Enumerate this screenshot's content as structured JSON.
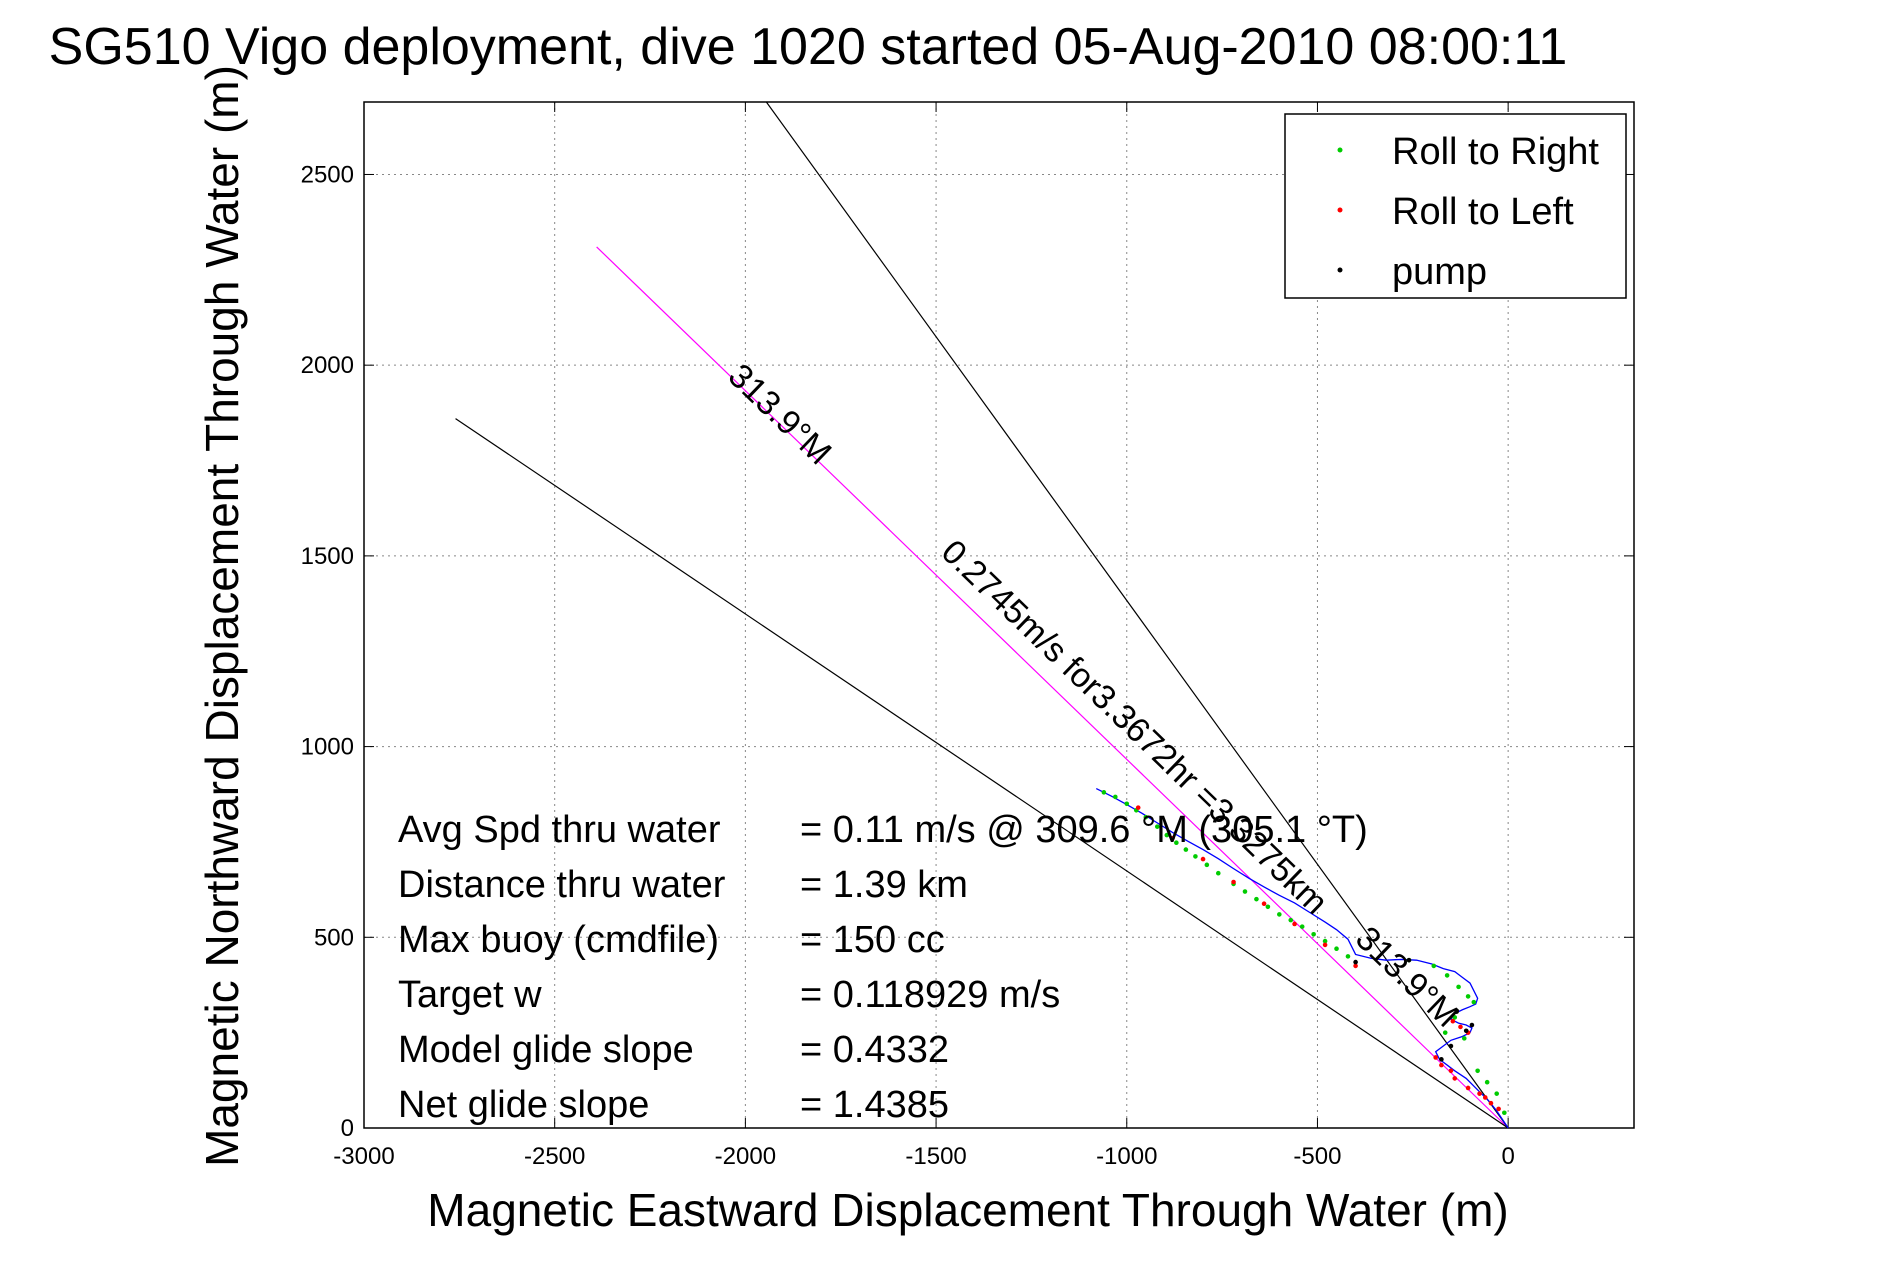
{
  "chart_data": {
    "type": "scatter",
    "title": "SG510 Vigo deployment, dive 1020 started 05-Aug-2010 08:00:11",
    "xlabel": "Magnetic Eastward Displacement Through Water (m)",
    "ylabel": "Magnetic Northward Displacement Through Water (m)",
    "xlim": [
      -3000,
      330
    ],
    "ylim": [
      0,
      2690
    ],
    "xticks": [
      -3000,
      -2500,
      -2000,
      -1500,
      -1000,
      -500,
      0
    ],
    "yticks": [
      0,
      500,
      1000,
      1500,
      2000,
      2500
    ],
    "grid": true,
    "legend_position": "top-right",
    "legend": [
      {
        "label": "Roll to Right",
        "color": "#00cc00"
      },
      {
        "label": "Roll to Left",
        "color": "#ff0000"
      },
      {
        "label": "pump",
        "color": "#000000"
      }
    ],
    "reference_lines": [
      {
        "from": [
          0,
          0
        ],
        "to": [
          -2390,
          2310
        ],
        "color": "#ff00ff",
        "label": "313.9°M"
      },
      {
        "from": [
          0,
          0
        ],
        "to": [
          -1945,
          2690
        ],
        "color": "#000000"
      },
      {
        "from": [
          0,
          0
        ],
        "to": [
          -2760,
          1860
        ],
        "color": "#000000"
      }
    ],
    "line_labels": [
      {
        "text": "313.9°M",
        "at": [
          -1930,
          1850
        ]
      },
      {
        "text": "0.2745m/s for3.3672hr =3.3275km",
        "at": [
          -1000,
          1030
        ]
      },
      {
        "text": "313.9°M",
        "at": [
          -285,
          375
        ]
      }
    ],
    "series": [
      {
        "name": "Roll to Right",
        "color": "#00cc00",
        "x": [
          -1060,
          -1030,
          -1000,
          -975,
          -950,
          -920,
          -895,
          -870,
          -845,
          -820,
          -790,
          -760,
          -720,
          -690,
          -660,
          -630,
          -600,
          -570,
          -540,
          -510,
          -480,
          -450,
          -420,
          -260,
          -195,
          -160,
          -130,
          -105,
          -90,
          -140,
          -165,
          -115,
          -80,
          -55,
          -30,
          -10
        ],
        "y": [
          880,
          868,
          850,
          833,
          815,
          790,
          768,
          748,
          730,
          712,
          690,
          668,
          640,
          620,
          600,
          580,
          560,
          545,
          528,
          508,
          490,
          470,
          450,
          440,
          425,
          400,
          370,
          345,
          330,
          290,
          250,
          235,
          150,
          120,
          90,
          40
        ]
      },
      {
        "name": "Roll to Left",
        "color": "#ff0000",
        "x": [
          -970,
          -880,
          -800,
          -720,
          -640,
          -560,
          -480,
          -400,
          -145,
          -125,
          -105,
          -190,
          -175,
          -150,
          -140,
          -105,
          -75,
          -60,
          -45,
          -25
        ],
        "y": [
          840,
          760,
          705,
          645,
          588,
          535,
          480,
          425,
          280,
          265,
          250,
          185,
          165,
          150,
          130,
          105,
          90,
          80,
          65,
          50
        ]
      },
      {
        "name": "pump",
        "color": "#000000",
        "x": [
          -400,
          -260,
          -135,
          -95,
          -110,
          -150,
          -175
        ],
        "y": [
          435,
          440,
          305,
          270,
          255,
          215,
          180
        ]
      }
    ],
    "trajectory": {
      "color": "#0000ff",
      "x": [
        -1080,
        -1040,
        -1000,
        -960,
        -920,
        -880,
        -840,
        -800,
        -760,
        -720,
        -680,
        -640,
        -600,
        -560,
        -520,
        -480,
        -450,
        -420,
        -400,
        -360,
        -320,
        -280,
        -240,
        -200,
        -170,
        -140,
        -120,
        -100,
        -90,
        -80,
        -85,
        -100,
        -120,
        -140,
        -150,
        -130,
        -110,
        -95,
        -100,
        -120,
        -150,
        -170,
        -190,
        -180,
        -160,
        -140,
        -110,
        -90,
        -70,
        -50,
        -30,
        -10,
        0
      ],
      "y": [
        890,
        870,
        848,
        825,
        800,
        775,
        752,
        730,
        706,
        680,
        655,
        632,
        610,
        590,
        565,
        540,
        520,
        495,
        455,
        445,
        440,
        442,
        440,
        430,
        418,
        410,
        395,
        380,
        360,
        340,
        325,
        318,
        310,
        300,
        285,
        275,
        270,
        262,
        250,
        240,
        230,
        215,
        200,
        180,
        165,
        150,
        130,
        110,
        90,
        70,
        45,
        15,
        0
      ]
    },
    "annotations": [
      {
        "label": "Avg Spd thru water",
        "value": "=  0.11 m/s @ 309.6 °M (305.1 °T)"
      },
      {
        "label": "Distance thru water",
        "value": "=  1.39 km"
      },
      {
        "label": "Max buoy (cmdfile)",
        "value": "= 150 cc"
      },
      {
        "label": "Target w",
        "value": "= 0.118929 m/s"
      },
      {
        "label": "Model glide slope",
        "value": "= 0.4332"
      },
      {
        "label": "Net glide slope",
        "value": "= 1.4385"
      }
    ]
  }
}
